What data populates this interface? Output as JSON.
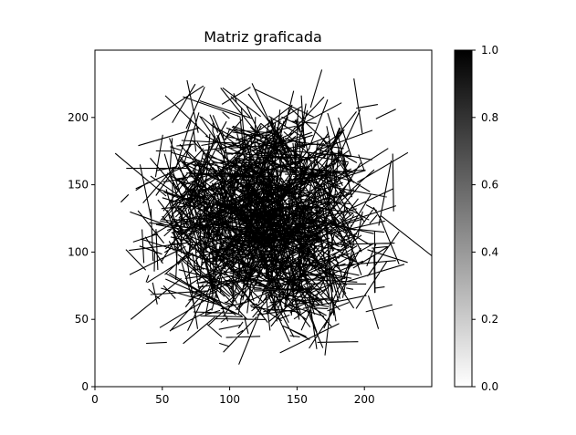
{
  "chart_data": {
    "type": "heatmap",
    "title": "Matriz graficada",
    "xlabel": "",
    "ylabel": "",
    "xlim": [
      0,
      250
    ],
    "ylim": [
      0,
      250
    ],
    "x_ticks": [
      "0",
      "50",
      "100",
      "150",
      "200"
    ],
    "y_ticks": [
      "0",
      "50",
      "100",
      "150",
      "200"
    ],
    "colorbar": {
      "range": [
        0.0,
        1.0
      ],
      "ticks": [
        "0.0",
        "0.2",
        "0.4",
        "0.6",
        "0.8",
        "1.0"
      ],
      "colormap": "gray_r",
      "low_color": "#ffffff",
      "high_color": "#000000"
    },
    "grid": false,
    "description_content": "250x250 binary matrix; 1-valued cells trace many random black line segments between points, densest in the center",
    "line_segment_count_estimate": 1500,
    "cell_values": [
      0,
      1
    ]
  }
}
